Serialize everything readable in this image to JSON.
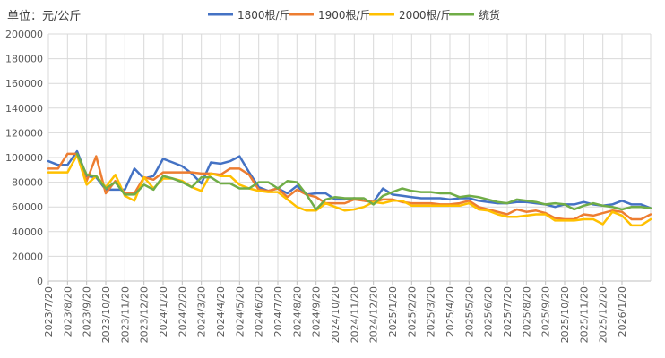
{
  "chart_data": {
    "type": "line",
    "unit_label": "单位：元/公斤",
    "ylim": [
      0,
      200000
    ],
    "y_ticks": [
      0,
      20000,
      40000,
      60000,
      80000,
      100000,
      120000,
      140000,
      160000,
      180000,
      200000
    ],
    "grid": true,
    "legend_position": "top",
    "x_labels": [
      "2023/7/20",
      "2023/8/20",
      "2023/9/20",
      "2023/10/20",
      "2023/11/20",
      "2023/12/20",
      "2024/1/20",
      "2024/2/20",
      "2024/3/20",
      "2024/4/20",
      "2024/5/20",
      "2024/6/20",
      "2024/7/20",
      "2024/8/20",
      "2024/9/20",
      "2024/10/20",
      "2024/11/20",
      "2024/12/20",
      "2025/1/20",
      "2025/2/20",
      "2025/3/20",
      "2025/4/20",
      "2025/5/20",
      "2025/6/20",
      "2025/7/20",
      "2025/8/20",
      "2025/9/20",
      "2025/10/20",
      "2025/11/20",
      "2025/12/20",
      "2026/1/20"
    ],
    "x_range": [
      0,
      31.5
    ],
    "series": [
      {
        "name": "1800根/斤",
        "color": "#4472C4",
        "points": [
          [
            0,
            97000
          ],
          [
            0.5,
            94000
          ],
          [
            1,
            94000
          ],
          [
            1.5,
            105000
          ],
          [
            2,
            85000
          ],
          [
            2.5,
            84000
          ],
          [
            3,
            74000
          ],
          [
            3.5,
            74000
          ],
          [
            4,
            74000
          ],
          [
            4.5,
            91000
          ],
          [
            5,
            83000
          ],
          [
            5.5,
            85000
          ],
          [
            6,
            99000
          ],
          [
            6.5,
            96000
          ],
          [
            7,
            93000
          ],
          [
            7.5,
            87000
          ],
          [
            8,
            79000
          ],
          [
            8.5,
            96000
          ],
          [
            9,
            95000
          ],
          [
            9.5,
            97000
          ],
          [
            10,
            101000
          ],
          [
            10.5,
            88000
          ],
          [
            11,
            76000
          ],
          [
            11.5,
            73000
          ],
          [
            12,
            75000
          ],
          [
            12.5,
            71000
          ],
          [
            13,
            77000
          ],
          [
            13.5,
            70000
          ],
          [
            14,
            71000
          ],
          [
            14.5,
            71000
          ],
          [
            15,
            66000
          ],
          [
            15.5,
            66000
          ],
          [
            16,
            67000
          ],
          [
            16.5,
            65000
          ],
          [
            17,
            64000
          ],
          [
            17.5,
            75000
          ],
          [
            18,
            70000
          ],
          [
            18.5,
            69000
          ],
          [
            19,
            68000
          ],
          [
            19.5,
            67000
          ],
          [
            20,
            67000
          ],
          [
            20.5,
            67000
          ],
          [
            21,
            66000
          ],
          [
            21.5,
            67000
          ],
          [
            22,
            67000
          ],
          [
            22.5,
            65000
          ],
          [
            23,
            64000
          ],
          [
            23.5,
            63000
          ],
          [
            24,
            63000
          ],
          [
            24.5,
            64000
          ],
          [
            25,
            64000
          ],
          [
            25.5,
            63000
          ],
          [
            26,
            62000
          ],
          [
            26.5,
            60000
          ],
          [
            27,
            62000
          ],
          [
            27.5,
            62000
          ],
          [
            28,
            64000
          ],
          [
            28.5,
            62000
          ],
          [
            29,
            61000
          ],
          [
            29.5,
            62000
          ],
          [
            30,
            65000
          ],
          [
            30.5,
            62000
          ],
          [
            31,
            62000
          ],
          [
            31.5,
            59000
          ]
        ]
      },
      {
        "name": "1900根/斤",
        "color": "#ED7D31",
        "points": [
          [
            0,
            91000
          ],
          [
            0.5,
            91000
          ],
          [
            1,
            103000
          ],
          [
            1.5,
            103000
          ],
          [
            2,
            81000
          ],
          [
            2.5,
            101000
          ],
          [
            3,
            71000
          ],
          [
            3.5,
            81000
          ],
          [
            4,
            71000
          ],
          [
            4.5,
            71000
          ],
          [
            5,
            84000
          ],
          [
            5.5,
            82000
          ],
          [
            6,
            88000
          ],
          [
            6.5,
            88000
          ],
          [
            7,
            88000
          ],
          [
            7.5,
            88000
          ],
          [
            8,
            87000
          ],
          [
            8.5,
            87000
          ],
          [
            9,
            86000
          ],
          [
            9.5,
            91000
          ],
          [
            10,
            91000
          ],
          [
            10.5,
            86000
          ],
          [
            11,
            74000
          ],
          [
            11.5,
            73000
          ],
          [
            12,
            75000
          ],
          [
            12.5,
            68000
          ],
          [
            13,
            74000
          ],
          [
            13.5,
            70000
          ],
          [
            14,
            68000
          ],
          [
            14.5,
            63000
          ],
          [
            15,
            63000
          ],
          [
            15.5,
            63000
          ],
          [
            16,
            66000
          ],
          [
            16.5,
            65000
          ],
          [
            17,
            64000
          ],
          [
            17.5,
            66000
          ],
          [
            18,
            66000
          ],
          [
            18.5,
            64000
          ],
          [
            19,
            63000
          ],
          [
            19.5,
            63000
          ],
          [
            20,
            63000
          ],
          [
            20.5,
            62000
          ],
          [
            21,
            62000
          ],
          [
            21.5,
            63000
          ],
          [
            22,
            65000
          ],
          [
            22.5,
            60000
          ],
          [
            23,
            58000
          ],
          [
            23.5,
            56000
          ],
          [
            24,
            54000
          ],
          [
            24.5,
            58000
          ],
          [
            25,
            56000
          ],
          [
            25.5,
            57000
          ],
          [
            26,
            55000
          ],
          [
            26.5,
            51000
          ],
          [
            27,
            50000
          ],
          [
            27.5,
            50000
          ],
          [
            28,
            54000
          ],
          [
            28.5,
            53000
          ],
          [
            29,
            55000
          ],
          [
            29.5,
            57000
          ],
          [
            30,
            56000
          ],
          [
            30.5,
            50000
          ],
          [
            31,
            50000
          ],
          [
            31.5,
            54000
          ]
        ]
      },
      {
        "name": "2000根/斤",
        "color": "#FFC000",
        "points": [
          [
            0,
            88000
          ],
          [
            0.5,
            88000
          ],
          [
            1,
            88000
          ],
          [
            1.5,
            102000
          ],
          [
            2,
            78000
          ],
          [
            2.5,
            85000
          ],
          [
            3,
            76000
          ],
          [
            3.5,
            86000
          ],
          [
            4,
            69000
          ],
          [
            4.5,
            65000
          ],
          [
            5,
            84000
          ],
          [
            5.5,
            75000
          ],
          [
            6,
            83000
          ],
          [
            6.5,
            83000
          ],
          [
            7,
            81000
          ],
          [
            7.5,
            76000
          ],
          [
            8,
            73000
          ],
          [
            8.5,
            87000
          ],
          [
            9,
            85000
          ],
          [
            9.5,
            85000
          ],
          [
            10,
            78000
          ],
          [
            10.5,
            75000
          ],
          [
            11,
            73000
          ],
          [
            11.5,
            72000
          ],
          [
            12,
            72000
          ],
          [
            12.5,
            66000
          ],
          [
            13,
            60000
          ],
          [
            13.5,
            57000
          ],
          [
            14,
            57000
          ],
          [
            14.5,
            63000
          ],
          [
            15,
            60000
          ],
          [
            15.5,
            57000
          ],
          [
            16,
            58000
          ],
          [
            16.5,
            60000
          ],
          [
            17,
            64000
          ],
          [
            17.5,
            63000
          ],
          [
            18,
            65000
          ],
          [
            18.5,
            65000
          ],
          [
            19,
            61000
          ],
          [
            19.5,
            61000
          ],
          [
            20,
            61000
          ],
          [
            20.5,
            61000
          ],
          [
            21,
            61000
          ],
          [
            21.5,
            61000
          ],
          [
            22,
            63000
          ],
          [
            22.5,
            58000
          ],
          [
            23,
            57000
          ],
          [
            23.5,
            54000
          ],
          [
            24,
            52000
          ],
          [
            24.5,
            52000
          ],
          [
            25,
            53000
          ],
          [
            25.5,
            54000
          ],
          [
            26,
            54000
          ],
          [
            26.5,
            49000
          ],
          [
            27,
            49000
          ],
          [
            27.5,
            49000
          ],
          [
            28,
            50000
          ],
          [
            28.5,
            50000
          ],
          [
            29,
            46000
          ],
          [
            29.5,
            56000
          ],
          [
            30,
            53000
          ],
          [
            30.5,
            45000
          ],
          [
            31,
            45000
          ],
          [
            31.5,
            50000
          ]
        ]
      },
      {
        "name": "统货",
        "color": "#70AD47",
        "points": [
          [
            1.5,
            103000
          ],
          [
            2,
            86000
          ],
          [
            2.5,
            85000
          ],
          [
            3,
            75000
          ],
          [
            3.5,
            80000
          ],
          [
            4,
            70000
          ],
          [
            4.5,
            70000
          ],
          [
            5,
            78000
          ],
          [
            5.5,
            74000
          ],
          [
            6,
            85000
          ],
          [
            6.5,
            83000
          ],
          [
            7,
            80000
          ],
          [
            7.5,
            76000
          ],
          [
            8,
            84000
          ],
          [
            8.5,
            84000
          ],
          [
            9,
            79000
          ],
          [
            9.5,
            79000
          ],
          [
            10,
            75000
          ],
          [
            10.5,
            75000
          ],
          [
            11,
            80000
          ],
          [
            11.5,
            80000
          ],
          [
            12,
            75000
          ],
          [
            12.5,
            81000
          ],
          [
            13,
            80000
          ],
          [
            13.5,
            70000
          ],
          [
            14,
            58000
          ],
          [
            14.5,
            66000
          ],
          [
            15,
            68000
          ],
          [
            15.5,
            67000
          ],
          [
            16,
            67000
          ],
          [
            16.5,
            67000
          ],
          [
            17,
            62000
          ],
          [
            17.5,
            69000
          ],
          [
            18,
            72000
          ],
          [
            18.5,
            75000
          ],
          [
            19,
            73000
          ],
          [
            19.5,
            72000
          ],
          [
            20,
            72000
          ],
          [
            20.5,
            71000
          ],
          [
            21,
            71000
          ],
          [
            21.5,
            68000
          ],
          [
            22,
            69000
          ],
          [
            22.5,
            68000
          ],
          [
            23,
            66000
          ],
          [
            23.5,
            64000
          ],
          [
            24,
            63000
          ],
          [
            24.5,
            66000
          ],
          [
            25,
            65000
          ],
          [
            25.5,
            64000
          ],
          [
            26,
            62000
          ],
          [
            26.5,
            63000
          ],
          [
            27,
            62000
          ],
          [
            27.5,
            58000
          ],
          [
            28,
            61000
          ],
          [
            28.5,
            63000
          ],
          [
            29,
            61000
          ],
          [
            29.5,
            60000
          ],
          [
            30,
            58000
          ],
          [
            30.5,
            60000
          ],
          [
            31,
            60000
          ],
          [
            31.5,
            59000
          ]
        ]
      }
    ]
  }
}
